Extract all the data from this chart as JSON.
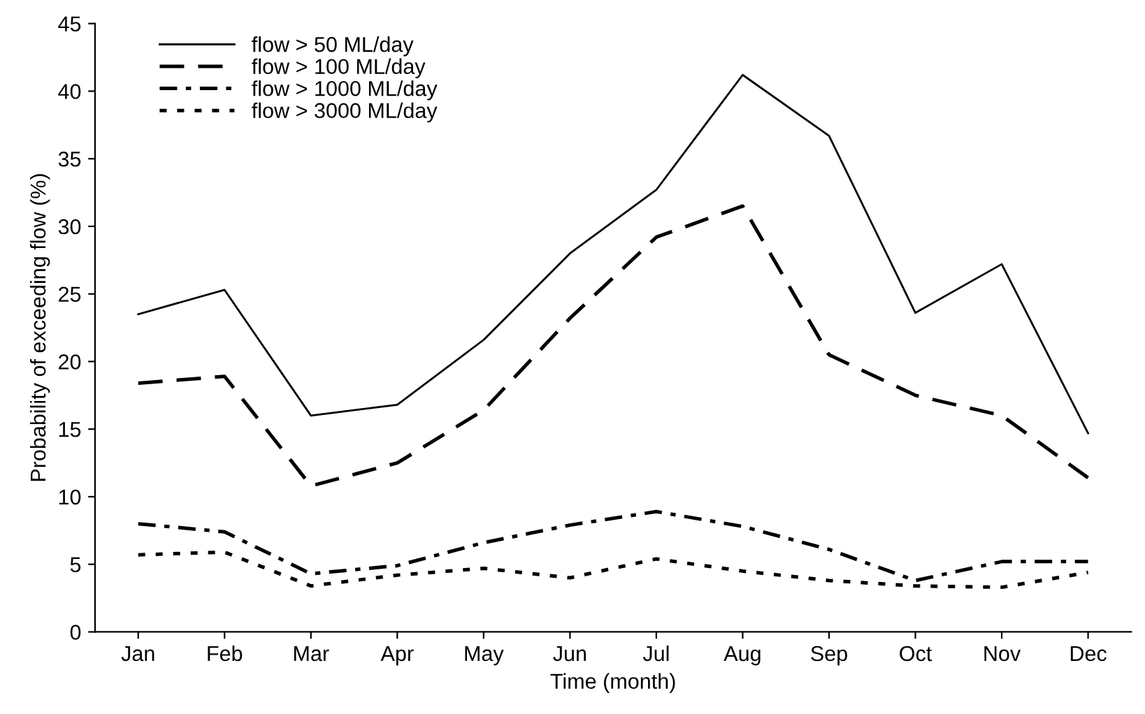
{
  "chart_data": {
    "type": "line",
    "xlabel": "Time (month)",
    "ylabel": "Probability of exceeding flow (%)",
    "categories": [
      "Jan",
      "Feb",
      "Mar",
      "Apr",
      "May",
      "Jun",
      "Jul",
      "Aug",
      "Sep",
      "Oct",
      "Nov",
      "Dec"
    ],
    "series": [
      {
        "name": "flow > 50 ML/day",
        "color": "#000000",
        "line_style": "solid",
        "values": [
          23.5,
          25.3,
          16.0,
          16.8,
          21.6,
          28.0,
          32.7,
          41.2,
          36.7,
          23.6,
          27.2,
          14.7
        ]
      },
      {
        "name": "flow > 100 ML/day",
        "color": "#000000",
        "line_style": "dashed",
        "values": [
          18.4,
          18.9,
          10.8,
          12.5,
          16.4,
          23.2,
          29.2,
          31.5,
          20.5,
          17.5,
          16.0,
          11.4
        ]
      },
      {
        "name": "flow > 1000 ML/day",
        "color": "#000000",
        "line_style": "dashdot",
        "values": [
          8.0,
          7.4,
          4.3,
          4.9,
          6.6,
          7.9,
          8.9,
          7.8,
          6.1,
          3.8,
          5.2,
          5.2
        ]
      },
      {
        "name": "flow > 3000 ML/day",
        "color": "#000000",
        "line_style": "dotted",
        "values": [
          5.7,
          5.9,
          3.4,
          4.2,
          4.7,
          4.0,
          5.4,
          4.5,
          3.8,
          3.4,
          3.3,
          4.4
        ]
      }
    ],
    "ylim": [
      0,
      45
    ],
    "yticks": [
      0,
      5,
      10,
      15,
      20,
      25,
      30,
      35,
      40,
      45
    ],
    "grid": false,
    "legend": "top left",
    "marker": "none"
  }
}
